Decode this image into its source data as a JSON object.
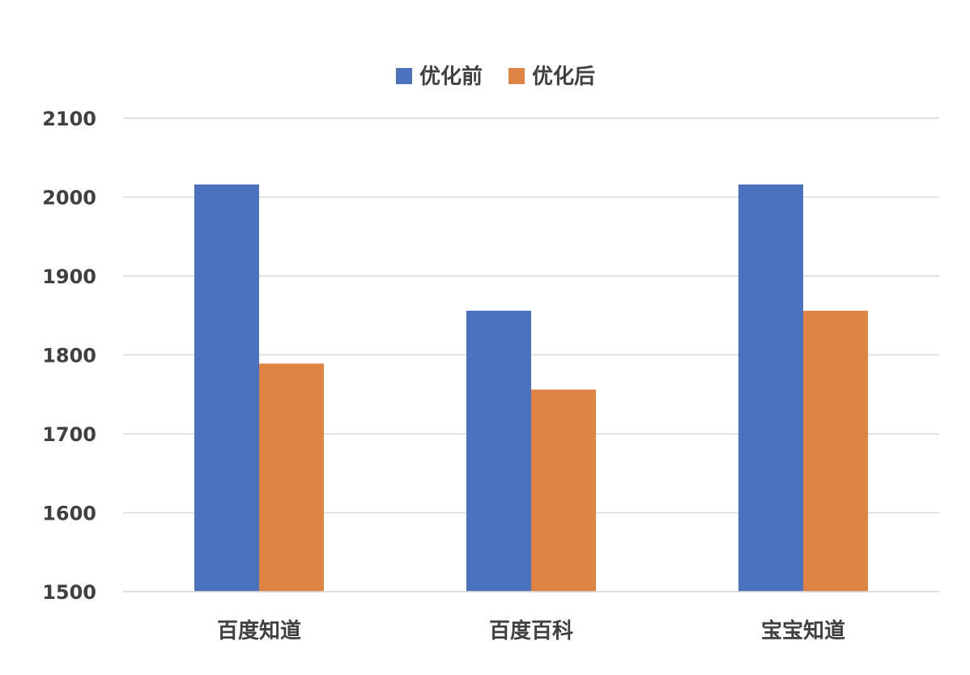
{
  "chart_data": {
    "type": "bar",
    "categories": [
      "百度知道",
      "百度百科",
      "宝宝知道"
    ],
    "series": [
      {
        "name": "优化前",
        "values": [
          2016,
          1856,
          2016
        ],
        "color": "#4a72bf"
      },
      {
        "name": "优化后",
        "values": [
          1789,
          1756,
          1856
        ],
        "color": "#e08445"
      }
    ],
    "ylim": [
      1500,
      2100
    ],
    "yticks": [
      1500,
      1600,
      1700,
      1800,
      1900,
      2000,
      2100
    ],
    "grid": true,
    "legend_position": "top-center"
  }
}
